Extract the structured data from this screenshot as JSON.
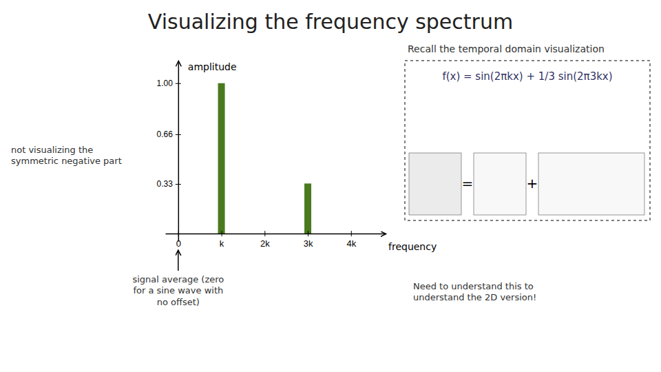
{
  "chart_data": {
    "type": "bar",
    "title": "Visualizing the frequency spectrum",
    "x": [
      1,
      3
    ],
    "values": [
      1.0,
      0.333
    ],
    "color": "#4a7a1e",
    "xlim": [
      -0.3,
      4.8
    ],
    "ylim": [
      -0.05,
      1.15
    ],
    "xticks": [
      0,
      {
        "value": 1,
        "label": "k"
      },
      {
        "value": 2,
        "label": "2k"
      },
      {
        "value": 3,
        "label": "3k"
      },
      {
        "value": 4,
        "label": "4k"
      }
    ],
    "yticks": [
      0.33,
      0.66,
      {
        "value": 1.0,
        "label": "1.00"
      }
    ],
    "xlabel": "frequency",
    "ylabel": "amplitude",
    "annotations": [
      "not visualizing the\nsymmetric negative part",
      "Recall the temporal domain visualization",
      "f(x) = sin(2πkx) + 1/3 sin(2π3kx)",
      "=",
      "+",
      "signal average (zero\nfor a sine wave with\nno offset)",
      "Need to understand this to\nunderstand the 2D version!"
    ]
  }
}
